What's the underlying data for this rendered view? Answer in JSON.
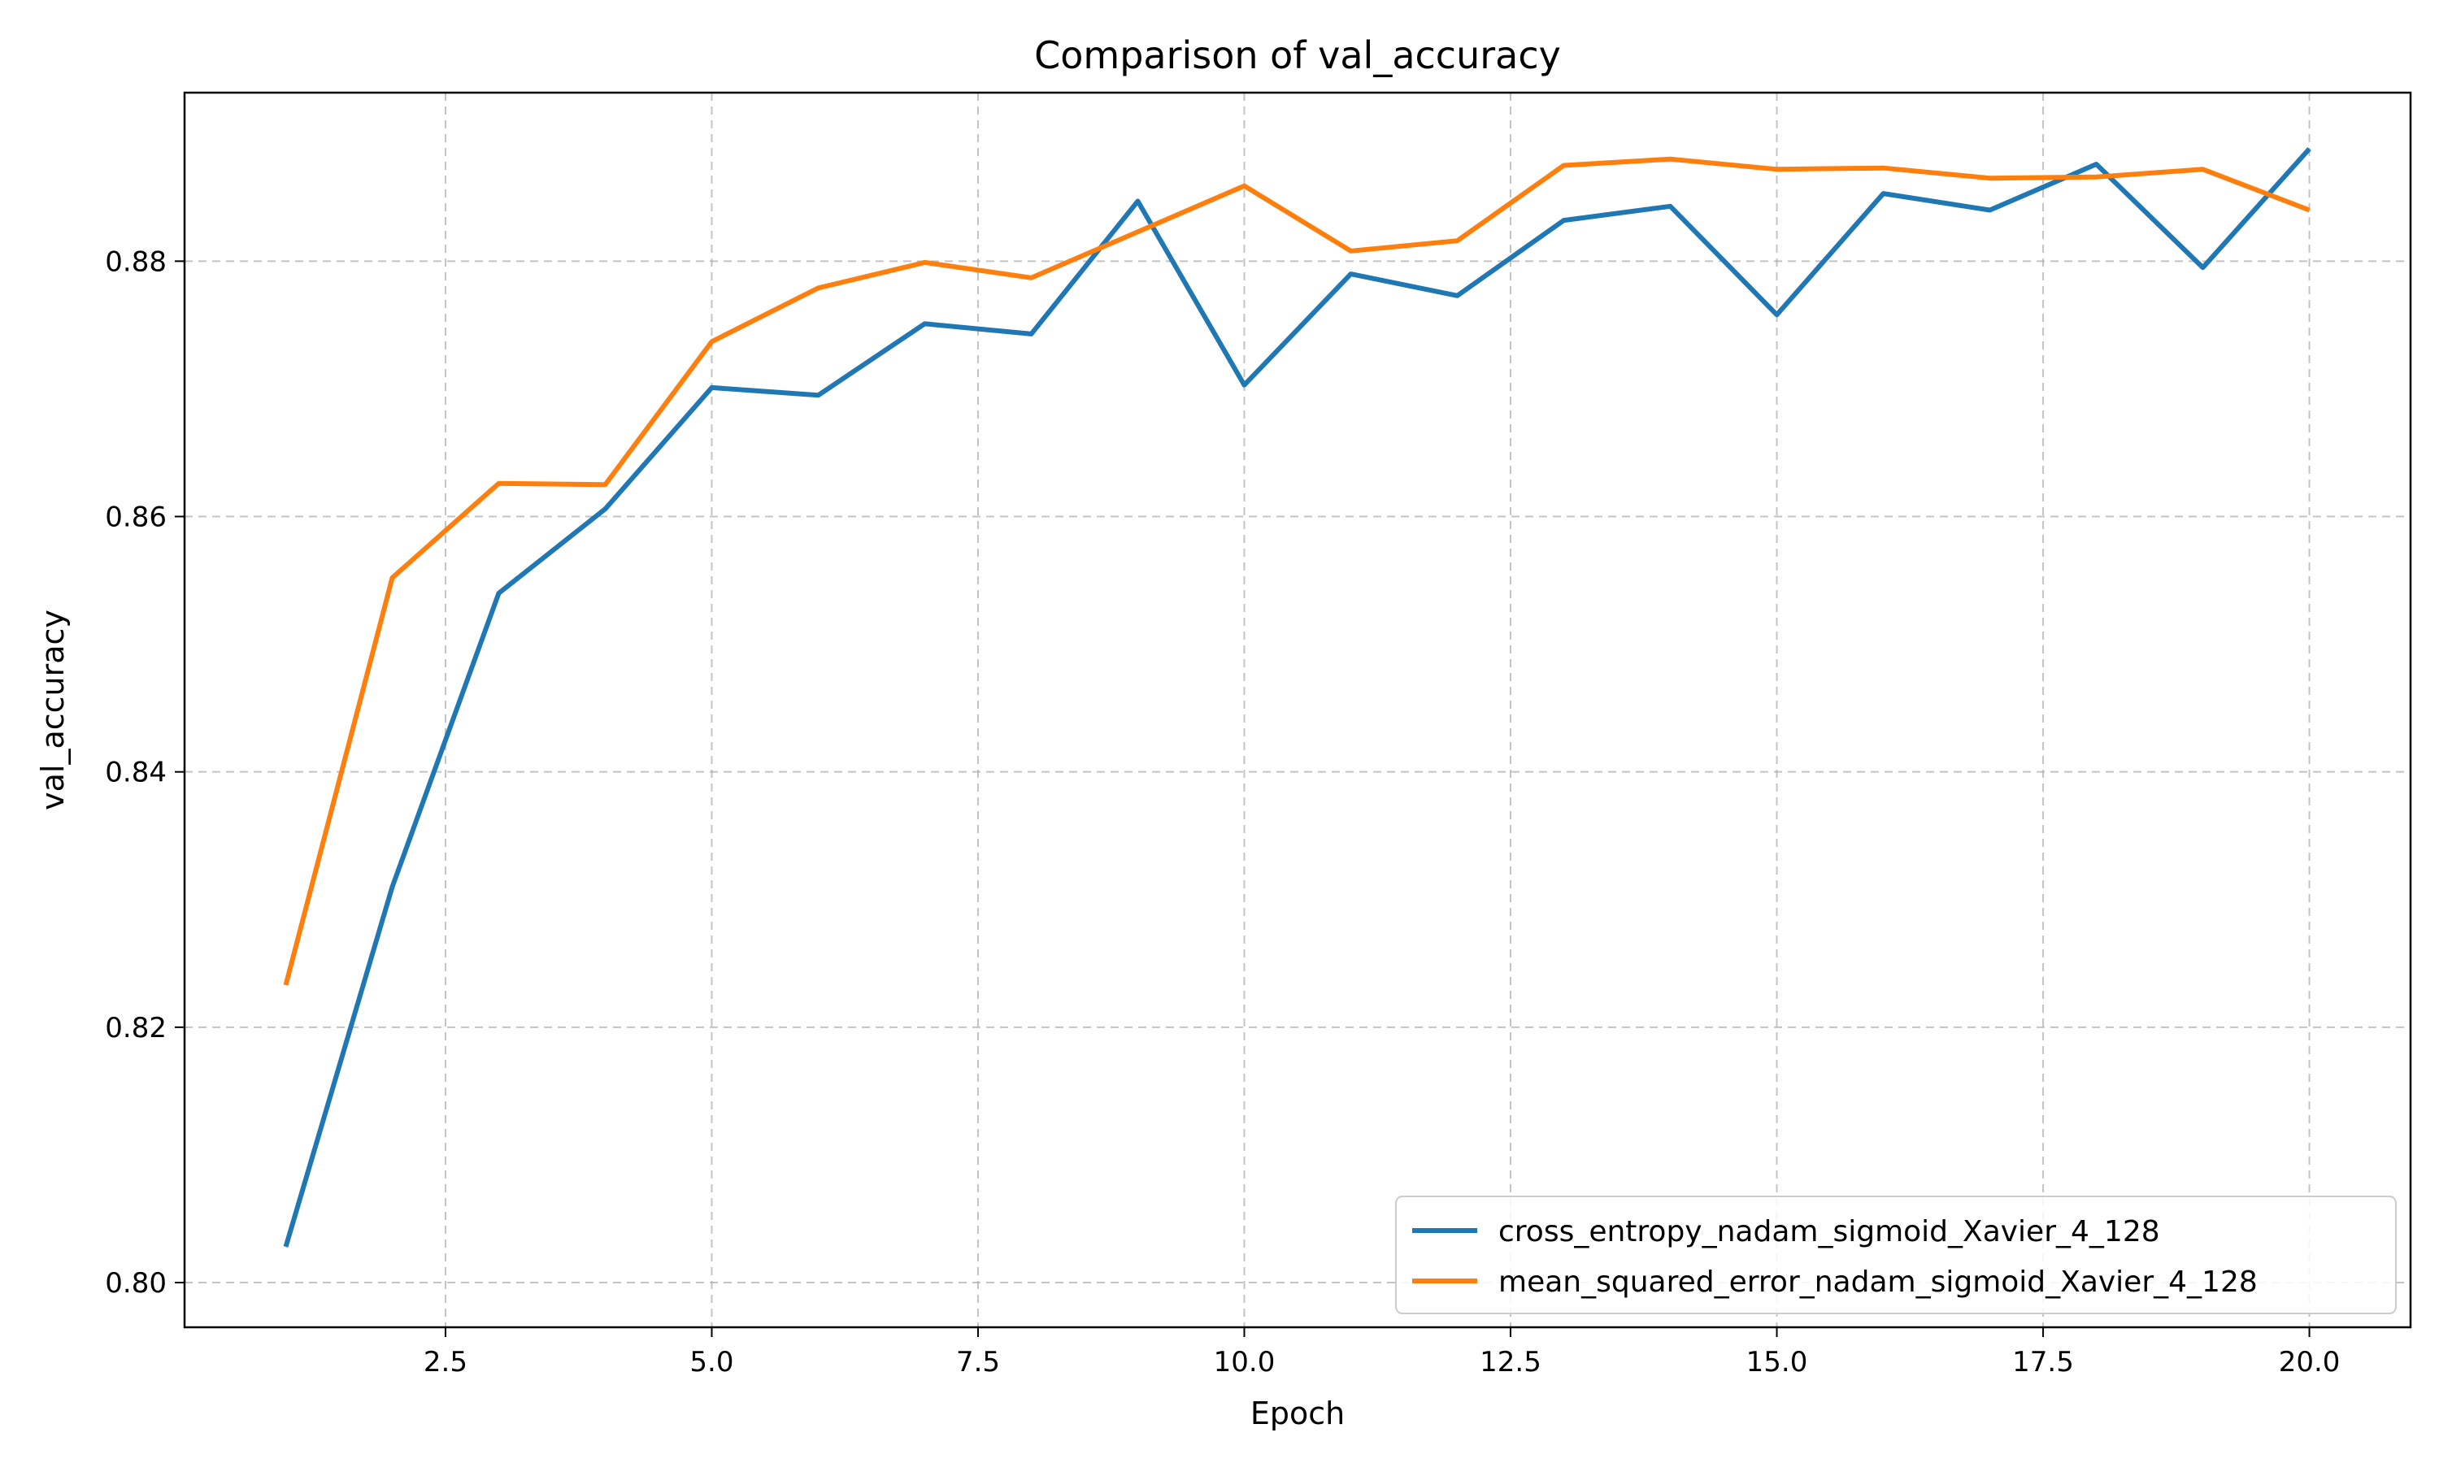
{
  "chart_data": {
    "type": "line",
    "title": "Comparison of val_accuracy",
    "xlabel": "Epoch",
    "ylabel": "val_accuracy",
    "xlim": [
      0.05,
      20.95
    ],
    "ylim": [
      0.7965,
      0.8932
    ],
    "xticks": [
      2.5,
      5.0,
      7.5,
      10.0,
      12.5,
      15.0,
      17.5,
      20.0
    ],
    "xtick_labels": [
      "2.5",
      "5.0",
      "7.5",
      "10.0",
      "12.5",
      "15.0",
      "17.5",
      "20.0"
    ],
    "yticks": [
      0.8,
      0.82,
      0.84,
      0.86,
      0.88
    ],
    "ytick_labels": [
      "0.80",
      "0.82",
      "0.84",
      "0.86",
      "0.88"
    ],
    "grid": true,
    "legend_position": "lower-right",
    "x": [
      1,
      2,
      3,
      4,
      5,
      6,
      7,
      8,
      9,
      10,
      11,
      12,
      13,
      14,
      15,
      16,
      17,
      18,
      19,
      20
    ],
    "series": [
      {
        "name": "cross_entropy_nadam_sigmoid_Xavier_4_128",
        "color": "#1f77b4",
        "values": [
          0.8028,
          0.831,
          0.854,
          0.8606,
          0.8701,
          0.8695,
          0.8751,
          0.8743,
          0.8847,
          0.8703,
          0.879,
          0.8773,
          0.8832,
          0.8843,
          0.8758,
          0.8853,
          0.884,
          0.8876,
          0.8795,
          0.8888
        ]
      },
      {
        "name": "mean_squared_error_nadam_sigmoid_Xavier_4_128",
        "color": "#ff7f0e",
        "values": [
          0.8233,
          0.8552,
          0.8626,
          0.8625,
          0.8737,
          0.8779,
          0.8799,
          0.8787,
          0.8823,
          0.8859,
          0.8808,
          0.8816,
          0.8875,
          0.888,
          0.8872,
          0.8873,
          0.8865,
          0.8866,
          0.8872,
          0.884
        ]
      }
    ]
  }
}
